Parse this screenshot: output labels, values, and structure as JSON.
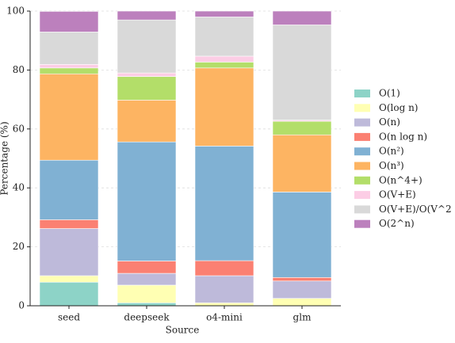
{
  "chart_data": {
    "type": "stacked_bar",
    "x_label": "Source",
    "y_label": "Percentage (%)",
    "categories": [
      "seed",
      "deepseek",
      "o4-mini",
      "glm"
    ],
    "series": [
      {
        "name": "O(1)",
        "color": "#8dd3c7",
        "values": [
          8,
          1,
          0,
          0
        ]
      },
      {
        "name": "O(log n)",
        "color": "#ffffb3",
        "values": [
          2.2,
          6,
          1,
          2.5
        ]
      },
      {
        "name": "O(n)",
        "color": "#bebada",
        "values": [
          16,
          4,
          9.2,
          5.9
        ]
      },
      {
        "name": "O(n log n)",
        "color": "#fb8072",
        "values": [
          3,
          4.2,
          5.1,
          1.2
        ]
      },
      {
        "name": "O(n²)",
        "color": "#80b1d3",
        "values": [
          20.2,
          40.4,
          38.9,
          29
        ]
      },
      {
        "name": "O(n³)",
        "color": "#fdb462",
        "values": [
          29.3,
          14.2,
          26.5,
          19.4
        ]
      },
      {
        "name": "O(n^4+)",
        "color": "#b3de69",
        "values": [
          2,
          8,
          2,
          4.6
        ]
      },
      {
        "name": "O(V+E)",
        "color": "#fccde5",
        "values": [
          1.2,
          1.2,
          2,
          0.4
        ]
      },
      {
        "name": "O(V+E)/O(V^2",
        "color": "#d9d9d9",
        "values": [
          11,
          18,
          13.3,
          32.3
        ]
      },
      {
        "name": "O(2^n)",
        "color": "#bc80bd",
        "values": [
          7,
          3,
          2,
          4.7
        ]
      }
    ],
    "ylim": [
      0,
      100
    ],
    "yticks": [
      0,
      20,
      40,
      60,
      80,
      100
    ],
    "grid": true,
    "legend": "right"
  }
}
